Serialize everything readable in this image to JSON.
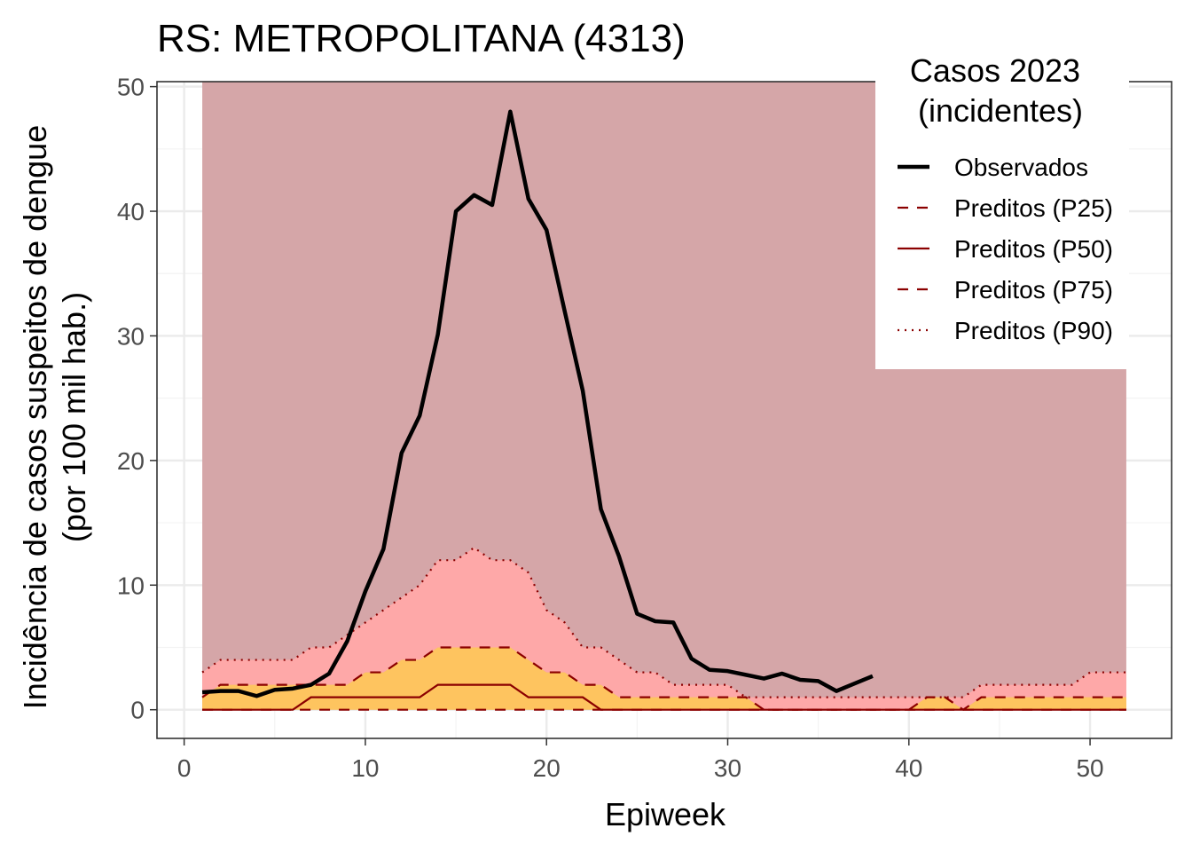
{
  "chart_data": {
    "type": "line",
    "title": "RS: METROPOLITANA (4313)",
    "xlabel": "Epiweek",
    "ylabel_line1": "Incidência de casos suspeitos de dengue",
    "ylabel_line2": "(por 100 mil hab.)",
    "xlim": [
      -1.5,
      54.5
    ],
    "ylim": [
      -2.3,
      50.4
    ],
    "x_ticks": [
      0,
      10,
      20,
      30,
      40,
      50
    ],
    "x_tick_labels": [
      "0",
      "10",
      "20",
      "30",
      "40",
      "50"
    ],
    "y_ticks": [
      0,
      10,
      20,
      30,
      40,
      50
    ],
    "y_tick_labels": [
      "0",
      "10",
      "20",
      "30",
      "40",
      "50"
    ],
    "grid": true,
    "background_band": {
      "x_start": 1,
      "x_end": 52,
      "y_top": 50.4,
      "color": "#d5a6a8"
    },
    "x_weeks": [
      1,
      2,
      3,
      4,
      5,
      6,
      7,
      8,
      9,
      10,
      11,
      12,
      13,
      14,
      15,
      16,
      17,
      18,
      19,
      20,
      21,
      22,
      23,
      24,
      25,
      26,
      27,
      28,
      29,
      30,
      31,
      32,
      33,
      34,
      35,
      36,
      37,
      38,
      39,
      40,
      41,
      42,
      43,
      44,
      45,
      46,
      47,
      48,
      49,
      50,
      51,
      52
    ],
    "p25": [
      0,
      0,
      0,
      0,
      0,
      0,
      0,
      0,
      0,
      0,
      0,
      0,
      0,
      0,
      0,
      0,
      0,
      0,
      0,
      0,
      0,
      0,
      0,
      0,
      0,
      0,
      0,
      0,
      0,
      0,
      0,
      0,
      0,
      0,
      0,
      0,
      0,
      0,
      0,
      0,
      0,
      0,
      0,
      0,
      0,
      0,
      0,
      0,
      0,
      0,
      0,
      0
    ],
    "p50": [
      0,
      0,
      0,
      0,
      0,
      0,
      1,
      1,
      1,
      1,
      1,
      1,
      1,
      2,
      2,
      2,
      2,
      2,
      1,
      1,
      1,
      1,
      0,
      0,
      0,
      0,
      0,
      0,
      0,
      0,
      0,
      0,
      0,
      0,
      0,
      0,
      0,
      0,
      0,
      0,
      0,
      0,
      0,
      0,
      0,
      0,
      0,
      0,
      0,
      0,
      0,
      0
    ],
    "p75": [
      1,
      2,
      2,
      2,
      2,
      2,
      2,
      2,
      2,
      3,
      3,
      4,
      4,
      5,
      5,
      5,
      5,
      5,
      4,
      3,
      3,
      2,
      2,
      1,
      1,
      1,
      1,
      1,
      1,
      1,
      1,
      0,
      0,
      0,
      0,
      0,
      0,
      0,
      0,
      0,
      1,
      1,
      0,
      1,
      1,
      1,
      1,
      1,
      1,
      1,
      1,
      1
    ],
    "p90": [
      3,
      4,
      4,
      4,
      4,
      4,
      5,
      5,
      6,
      7,
      8,
      9,
      10,
      12,
      12,
      13,
      12,
      12,
      11,
      8,
      7,
      5,
      5,
      4,
      3,
      3,
      2,
      2,
      2,
      2,
      1,
      1,
      1,
      1,
      1,
      1,
      1,
      1,
      1,
      1,
      1,
      1,
      1,
      2,
      2,
      2,
      2,
      2,
      2,
      3,
      3,
      3
    ],
    "observed": {
      "x": [
        1,
        2,
        3,
        4,
        5,
        6,
        7,
        8,
        9,
        10,
        11,
        12,
        13,
        14,
        15,
        16,
        17,
        18,
        19,
        20,
        21,
        22,
        23,
        24,
        25,
        26,
        27,
        28,
        29,
        30,
        31,
        32,
        33,
        34,
        35,
        36,
        37,
        38
      ],
      "y": [
        1.4,
        1.5,
        1.5,
        1.1,
        1.6,
        1.7,
        2.0,
        2.9,
        5.5,
        9.5,
        12.9,
        20.6,
        23.6,
        30.1,
        40.0,
        41.3,
        40.5,
        48.0,
        41.0,
        38.5,
        32.0,
        25.6,
        16.1,
        12.3,
        7.7,
        7.1,
        7.0,
        4.1,
        3.2,
        3.1,
        2.8,
        2.5,
        2.9,
        2.4,
        2.3,
        1.5,
        2.1,
        2.7
      ]
    },
    "colors": {
      "observed": "#000000",
      "predicted_line": "#8b0000",
      "fill_p25_p75": "#fec45f",
      "fill_p75_p90": "#fea8a8",
      "background_band": "#d5a6a8"
    },
    "legend": {
      "title_line1": "Casos 2023",
      "title_line2": "(incidentes)",
      "placement": "top-right, inside plot",
      "entries": [
        {
          "label": "Observados",
          "style": "solid-thick"
        },
        {
          "label": "Preditos (P25)",
          "style": "dashed"
        },
        {
          "label": "Preditos (P50)",
          "style": "solid-thin"
        },
        {
          "label": "Preditos (P75)",
          "style": "dashed"
        },
        {
          "label": "Preditos (P90)",
          "style": "dotted"
        }
      ]
    }
  }
}
